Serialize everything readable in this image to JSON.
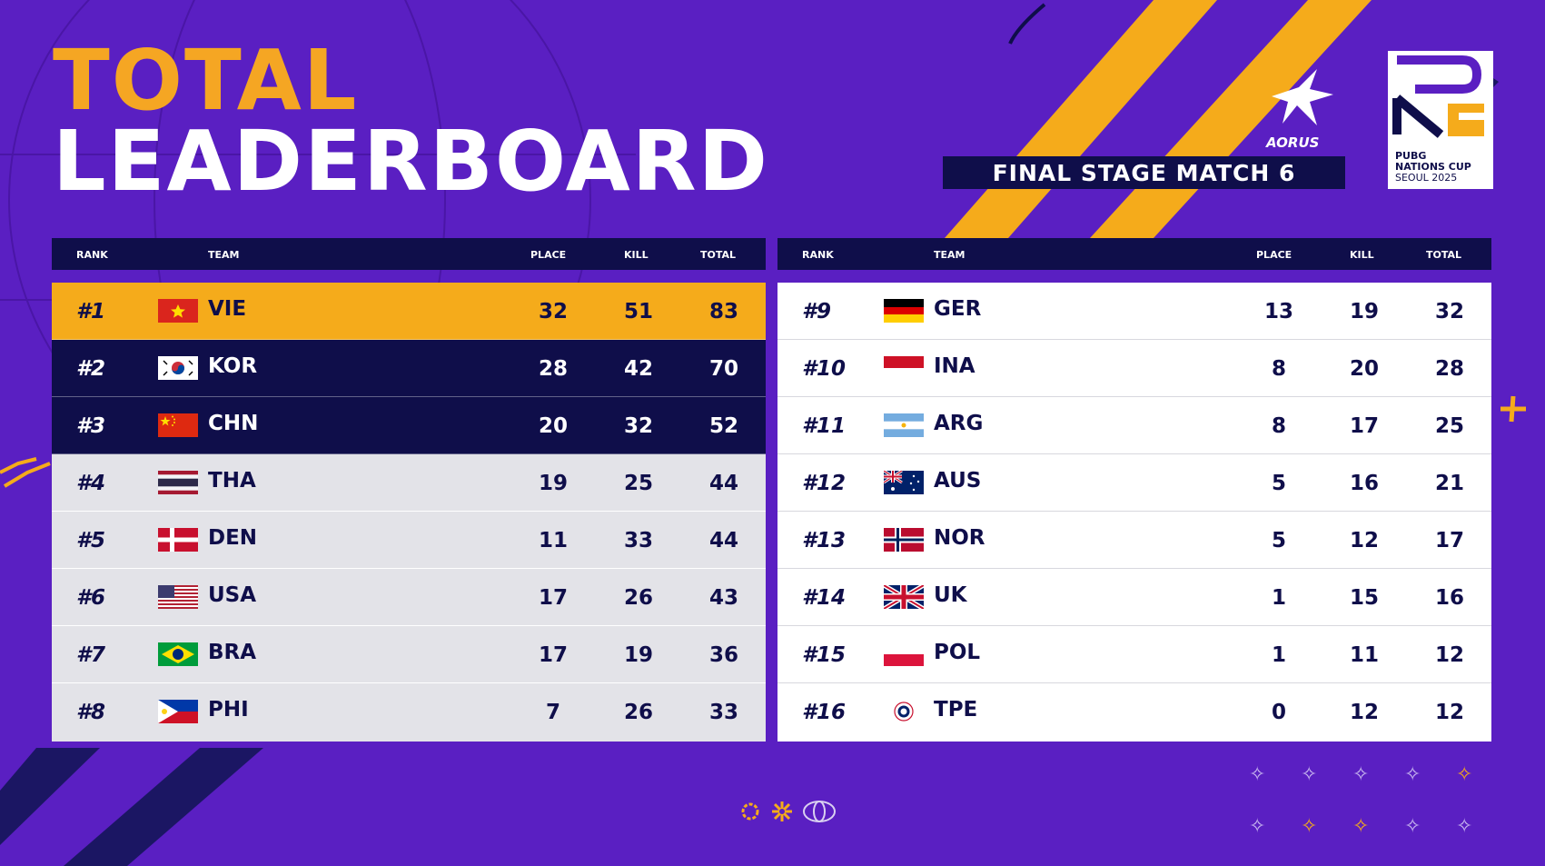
{
  "title": {
    "line1": "TOTAL",
    "line2": "LEADERBOARD"
  },
  "stage": "FINAL STAGE MATCH 6",
  "sponsor_logo": {
    "text": "AORUS"
  },
  "event_logo": {
    "line1": "PUBG",
    "line2": "NATIONS CUP",
    "line3": "SEOUL 2025"
  },
  "columns": {
    "rank": "RANK",
    "team": "TEAM",
    "place": "PLACE",
    "kill": "KILL",
    "total": "TOTAL"
  },
  "colors": {
    "background": "#5a1fc2",
    "navy": "#0f0e4a",
    "gold": "#f5ab1b"
  },
  "standings_left": [
    {
      "rank": "#1",
      "team": "VIE",
      "flag": "vietnam-flag-icon",
      "place": "32",
      "kill": "51",
      "total": "83"
    },
    {
      "rank": "#2",
      "team": "KOR",
      "flag": "south-korea-flag-icon",
      "place": "28",
      "kill": "42",
      "total": "70"
    },
    {
      "rank": "#3",
      "team": "CHN",
      "flag": "china-flag-icon",
      "place": "20",
      "kill": "32",
      "total": "52"
    },
    {
      "rank": "#4",
      "team": "THA",
      "flag": "thailand-flag-icon",
      "place": "19",
      "kill": "25",
      "total": "44"
    },
    {
      "rank": "#5",
      "team": "DEN",
      "flag": "denmark-flag-icon",
      "place": "11",
      "kill": "33",
      "total": "44"
    },
    {
      "rank": "#6",
      "team": "USA",
      "flag": "usa-flag-icon",
      "place": "17",
      "kill": "26",
      "total": "43"
    },
    {
      "rank": "#7",
      "team": "BRA",
      "flag": "brazil-flag-icon",
      "place": "17",
      "kill": "19",
      "total": "36"
    },
    {
      "rank": "#8",
      "team": "PHI",
      "flag": "philippines-flag-icon",
      "place": "7",
      "kill": "26",
      "total": "33"
    }
  ],
  "standings_right": [
    {
      "rank": "#9",
      "team": "GER",
      "flag": "germany-flag-icon",
      "place": "13",
      "kill": "19",
      "total": "32"
    },
    {
      "rank": "#10",
      "team": "INA",
      "flag": "indonesia-flag-icon",
      "place": "8",
      "kill": "20",
      "total": "28"
    },
    {
      "rank": "#11",
      "team": "ARG",
      "flag": "argentina-flag-icon",
      "place": "8",
      "kill": "17",
      "total": "25"
    },
    {
      "rank": "#12",
      "team": "AUS",
      "flag": "australia-flag-icon",
      "place": "5",
      "kill": "16",
      "total": "21"
    },
    {
      "rank": "#13",
      "team": "NOR",
      "flag": "norway-flag-icon",
      "place": "5",
      "kill": "12",
      "total": "17"
    },
    {
      "rank": "#14",
      "team": "UK",
      "flag": "uk-flag-icon",
      "place": "1",
      "kill": "15",
      "total": "16"
    },
    {
      "rank": "#15",
      "team": "POL",
      "flag": "poland-flag-icon",
      "place": "1",
      "kill": "11",
      "total": "12"
    },
    {
      "rank": "#16",
      "team": "TPE",
      "flag": "chinese-taipei-flag-icon",
      "place": "0",
      "kill": "12",
      "total": "12"
    }
  ]
}
